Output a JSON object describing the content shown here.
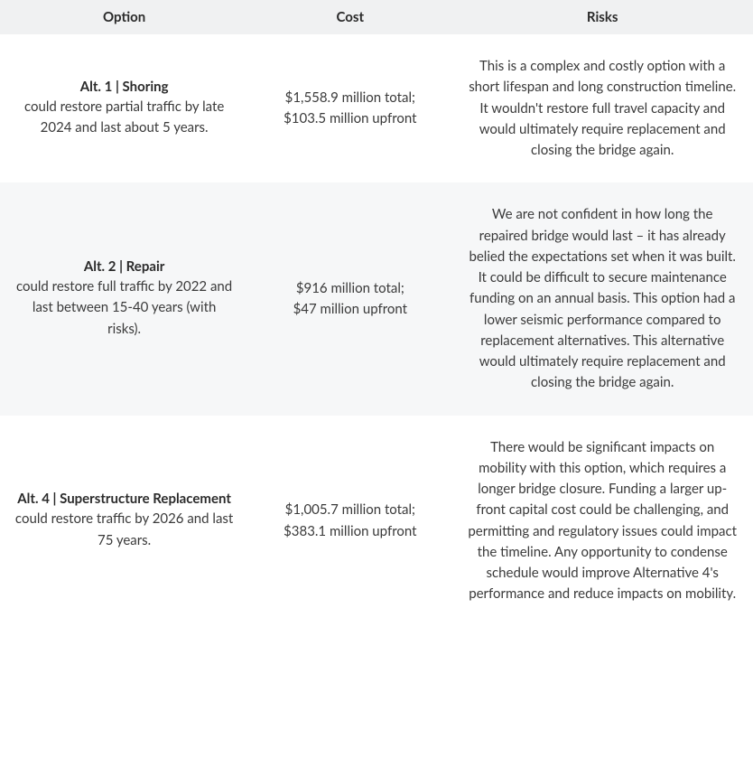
{
  "table": {
    "columns": [
      "Option",
      "Cost",
      "Risks"
    ],
    "column_widths": [
      "33%",
      "27%",
      "40%"
    ],
    "header_bg": "#f0f1f2",
    "stripe_bg": "#f6f7f8",
    "text_color": "#3a3a3a",
    "title_color": "#2a2a2a",
    "font_size": 15,
    "rows": [
      {
        "striped": false,
        "option_title": "Alt. 1 | Shoring",
        "option_desc": "could restore partial traffic by late 2024 and last about 5 years.",
        "cost_total": "$1,558.9 million total;",
        "cost_upfront": "$103.5 million upfront",
        "risks": "This is a complex and costly option with a short lifespan and long construction timeline. It wouldn't restore full travel capacity and would ultimately require replacement and closing the bridge again."
      },
      {
        "striped": true,
        "option_title": "Alt. 2 | Repair",
        "option_desc": "could restore full traffic by 2022 and last between 15-40 years (with risks).",
        "cost_total": "$916 million total;",
        "cost_upfront": "$47 million upfront",
        "risks": "We are not confident in how long the repaired bridge would last – it has already belied the expectations set when it was built. It could be difficult to secure maintenance funding on an annual basis. This option had a lower seismic performance compared to replacement alternatives.  This alternative would ultimately require replacement and closing the bridge again."
      },
      {
        "striped": false,
        "option_title": "Alt. 4 | Superstructure Replacement",
        "option_desc": "could restore traffic by 2026 and last 75 years.",
        "cost_total": "$1,005.7 million total;",
        "cost_upfront": "$383.1 million upfront",
        "risks": "There would be significant impacts on mobility with this option, which requires a longer bridge closure. Funding a larger up-front capital cost could be challenging, and permitting and regulatory issues could impact the timeline. Any opportunity to condense schedule would improve Alternative 4's performance and reduce impacts on mobility."
      }
    ]
  }
}
